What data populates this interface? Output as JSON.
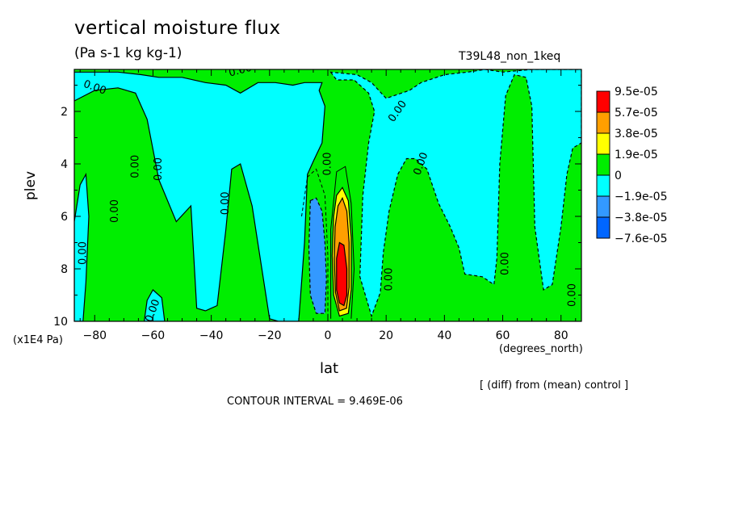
{
  "chart_data": {
    "type": "heatmap",
    "title": "vertical moisture flux",
    "units": "(Pa s-1 kg kg-1)",
    "run_label": "T39L48_non_1keq",
    "xlabel": "lat",
    "x_units": "(degrees_north)",
    "ylabel": "plev",
    "y_units": "(x1E4 Pa)",
    "subtitle": "[ (diff) from (mean) control ]",
    "contour_interval_text": "CONTOUR INTERVAL = 9.469E-06",
    "xlim": [
      -87,
      87
    ],
    "ylim": [
      10,
      0.4
    ],
    "x_ticks": [
      -80,
      -60,
      -40,
      -20,
      0,
      20,
      40,
      60,
      80
    ],
    "y_ticks": [
      2,
      4,
      6,
      8,
      10
    ],
    "zero_contour_label": "0.00",
    "legend": {
      "labels": [
        "9.5e-05",
        "5.7e-05",
        "3.8e-05",
        "1.9e-05",
        "0",
        "-1.9e-05",
        "-3.8e-05",
        "-7.6e-05"
      ],
      "colors": [
        "#ff0000",
        "#ff9f00",
        "#ffff00",
        "#00ee00",
        "#00ffff",
        "#3399ff",
        "#0066ff"
      ],
      "placement": "right"
    },
    "regions": [
      {
        "level": 0,
        "color": "#00ee00",
        "points": [
          [
            -87,
            0.4
          ],
          [
            87,
            0.4
          ],
          [
            87,
            10
          ],
          [
            -87,
            10
          ]
        ]
      },
      {
        "level": -1,
        "color": "#00ffff",
        "points": [
          [
            -87,
            1.6
          ],
          [
            -80,
            1.2
          ],
          [
            -72,
            1.1
          ],
          [
            -66,
            1.3
          ],
          [
            -62,
            2.3
          ],
          [
            -58,
            4.6
          ],
          [
            -52,
            6.2
          ],
          [
            -47,
            5.6
          ],
          [
            -45,
            9.5
          ],
          [
            -42,
            9.6
          ],
          [
            -38,
            9.4
          ],
          [
            -35,
            6.5
          ],
          [
            -33,
            4.2
          ],
          [
            -30,
            4.0
          ],
          [
            -26,
            5.6
          ],
          [
            -20,
            9.9
          ],
          [
            -17,
            10
          ],
          [
            -10,
            10
          ],
          [
            -8,
            7
          ],
          [
            -7,
            4.4
          ],
          [
            -5,
            3.9
          ],
          [
            -2,
            3.2
          ],
          [
            -1,
            1.8
          ],
          [
            -3,
            1.2
          ],
          [
            -2,
            0.9
          ],
          [
            -8,
            0.9
          ],
          [
            -12,
            1.0
          ],
          [
            -18,
            0.9
          ],
          [
            -24,
            0.9
          ],
          [
            -30,
            1.3
          ],
          [
            -35,
            1.0
          ],
          [
            -42,
            0.9
          ],
          [
            -50,
            0.7
          ],
          [
            -58,
            0.7
          ],
          [
            -64,
            0.6
          ],
          [
            -72,
            0.5
          ],
          [
            -80,
            0.5
          ],
          [
            -87,
            0.5
          ]
        ]
      },
      {
        "level": -1,
        "color": "#00ffff",
        "points": [
          [
            -87,
            6.2
          ],
          [
            -85,
            4.8
          ],
          [
            -83,
            4.4
          ],
          [
            -82,
            6.0
          ],
          [
            -83,
            8.5
          ],
          [
            -84,
            10
          ],
          [
            -87,
            10
          ]
        ]
      },
      {
        "level": -1,
        "color": "#00ffff",
        "points": [
          [
            -62,
            9.2
          ],
          [
            -60,
            8.8
          ],
          [
            -57,
            9.1
          ],
          [
            -56,
            10
          ],
          [
            -63,
            10
          ]
        ]
      },
      {
        "level": -1,
        "color": "#00ffff",
        "points": [
          [
            1,
            0.5
          ],
          [
            3,
            0.8
          ],
          [
            9,
            0.8
          ],
          [
            14,
            1.3
          ],
          [
            16,
            2.0
          ],
          [
            14,
            3.2
          ],
          [
            12,
            5.2
          ],
          [
            11,
            8.3
          ],
          [
            15,
            9.8
          ],
          [
            18,
            8.9
          ],
          [
            19,
            7.4
          ],
          [
            21,
            5.8
          ],
          [
            24,
            4.4
          ],
          [
            27,
            3.8
          ],
          [
            30,
            3.8
          ],
          [
            34,
            4.2
          ],
          [
            38,
            5.5
          ],
          [
            42,
            6.4
          ],
          [
            45,
            7.2
          ],
          [
            47,
            8.2
          ],
          [
            53,
            8.3
          ],
          [
            57,
            8.6
          ],
          [
            58,
            7.6
          ],
          [
            59,
            4.0
          ],
          [
            61,
            1.4
          ],
          [
            64,
            0.6
          ],
          [
            68,
            0.7
          ],
          [
            70,
            1.8
          ],
          [
            71,
            6.4
          ],
          [
            74,
            8.8
          ],
          [
            77,
            8.6
          ],
          [
            80,
            6.4
          ],
          [
            82,
            4.4
          ],
          [
            84,
            3.4
          ],
          [
            87,
            3.2
          ],
          [
            87,
            0.4
          ],
          [
            70,
            0.4
          ],
          [
            60,
            0.5
          ],
          [
            54,
            0.4
          ],
          [
            48,
            0.5
          ],
          [
            40,
            0.6
          ],
          [
            32,
            0.9
          ],
          [
            28,
            1.2
          ],
          [
            20,
            1.5
          ],
          [
            15,
            0.9
          ],
          [
            10,
            0.6
          ]
        ]
      },
      {
        "level": -2,
        "color": "#3399ff",
        "points": [
          [
            -6,
            5.4
          ],
          [
            -4,
            5.3
          ],
          [
            -2,
            5.8
          ],
          [
            -1,
            7.0
          ],
          [
            -0.5,
            8.4
          ],
          [
            -1,
            9.7
          ],
          [
            -4,
            9.7
          ],
          [
            -6,
            9.0
          ],
          [
            -6.5,
            7.2
          ]
        ]
      },
      {
        "level": 1,
        "color": "#ffff00",
        "points": [
          [
            2,
            6.0
          ],
          [
            3,
            5.2
          ],
          [
            5,
            4.9
          ],
          [
            7,
            5.4
          ],
          [
            8,
            6.8
          ],
          [
            8,
            8.8
          ],
          [
            7,
            9.7
          ],
          [
            4,
            9.8
          ],
          [
            2,
            9.0
          ],
          [
            1.5,
            7.5
          ]
        ]
      },
      {
        "level": 2,
        "color": "#ff9f00",
        "points": [
          [
            2.5,
            6.4
          ],
          [
            3.5,
            5.6
          ],
          [
            5,
            5.3
          ],
          [
            6.5,
            5.8
          ],
          [
            7.3,
            7.0
          ],
          [
            7.3,
            8.7
          ],
          [
            6.4,
            9.5
          ],
          [
            4,
            9.6
          ],
          [
            2.6,
            8.9
          ],
          [
            2.2,
            7.6
          ]
        ]
      },
      {
        "level": 3,
        "color": "#ff0000",
        "points": [
          [
            3,
            7.6
          ],
          [
            4,
            7.0
          ],
          [
            5.5,
            7.1
          ],
          [
            6.5,
            8.0
          ],
          [
            6.5,
            9.0
          ],
          [
            5.5,
            9.4
          ],
          [
            4,
            9.3
          ],
          [
            3,
            8.8
          ]
        ]
      }
    ],
    "contour_labels": [
      {
        "x": -80,
        "y": 1.1,
        "rot": 20,
        "text": "0.00"
      },
      {
        "x": -30,
        "y": 0.45,
        "rot": -15,
        "text": "0.00"
      },
      {
        "x": 24,
        "y": 2.0,
        "rot": -55,
        "text": "0.00"
      },
      {
        "x": 32,
        "y": 4.0,
        "rot": -70,
        "text": "0.00"
      },
      {
        "x": -84,
        "y": 7.4,
        "rot": -90,
        "text": "0.00"
      },
      {
        "x": -73,
        "y": 5.8,
        "rot": -90,
        "text": "0.00"
      },
      {
        "x": -66,
        "y": 4.1,
        "rot": -90,
        "text": "0.00"
      },
      {
        "x": -58,
        "y": 4.2,
        "rot": -90,
        "text": "0.00"
      },
      {
        "x": -35,
        "y": 5.5,
        "rot": -90,
        "text": "0.00"
      },
      {
        "x": -60,
        "y": 9.6,
        "rot": -70,
        "text": "0.00"
      },
      {
        "x": 0,
        "y": 4.0,
        "rot": -90,
        "text": "0.00"
      },
      {
        "x": 21,
        "y": 8.4,
        "rot": -90,
        "text": "0.00"
      },
      {
        "x": 61,
        "y": 7.8,
        "rot": -90,
        "text": "0.00"
      },
      {
        "x": 84,
        "y": 9.0,
        "rot": -90,
        "text": "0.00"
      }
    ]
  }
}
